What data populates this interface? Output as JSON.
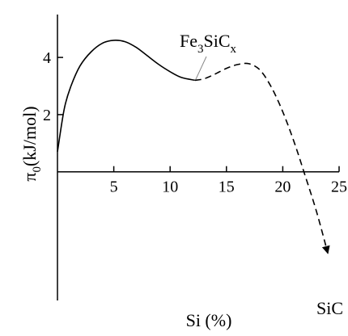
{
  "chart_data": {
    "type": "line",
    "xlabel": "Si (%)",
    "ylabel_symbol": "π",
    "ylabel_subscript": "0",
    "ylabel_units": "(kJ/mol)",
    "xlim": [
      0,
      25
    ],
    "ylim": [
      -4.5,
      5.5
    ],
    "x_ticks": [
      5,
      10,
      15,
      20,
      25
    ],
    "y_ticks": [
      2,
      4
    ],
    "grid": false,
    "series": [
      {
        "style": "solid",
        "x": [
          0,
          0.6,
          1.2,
          2,
          3,
          4,
          5,
          6,
          7,
          8,
          9,
          10,
          11,
          12.2
        ],
        "y": [
          0.7,
          2.2,
          3.0,
          3.7,
          4.2,
          4.5,
          4.6,
          4.55,
          4.35,
          4.05,
          3.75,
          3.5,
          3.3,
          3.2
        ]
      },
      {
        "style": "dashed",
        "x": [
          12.2,
          13,
          14,
          15,
          16,
          17,
          18,
          19,
          20,
          21,
          22,
          23,
          24
        ],
        "y": [
          3.2,
          3.25,
          3.42,
          3.62,
          3.75,
          3.78,
          3.55,
          2.95,
          2.1,
          1.05,
          -0.15,
          -1.4,
          -2.85
        ]
      }
    ],
    "annotations": [
      {
        "text_main": "Fe",
        "text_sub1": "3",
        "text_mid": "SiC",
        "text_sub2": "x",
        "points_to": [
          12.2,
          3.2
        ]
      },
      {
        "text": "SiC",
        "arrow_at": [
          24,
          -2.85
        ]
      }
    ]
  }
}
